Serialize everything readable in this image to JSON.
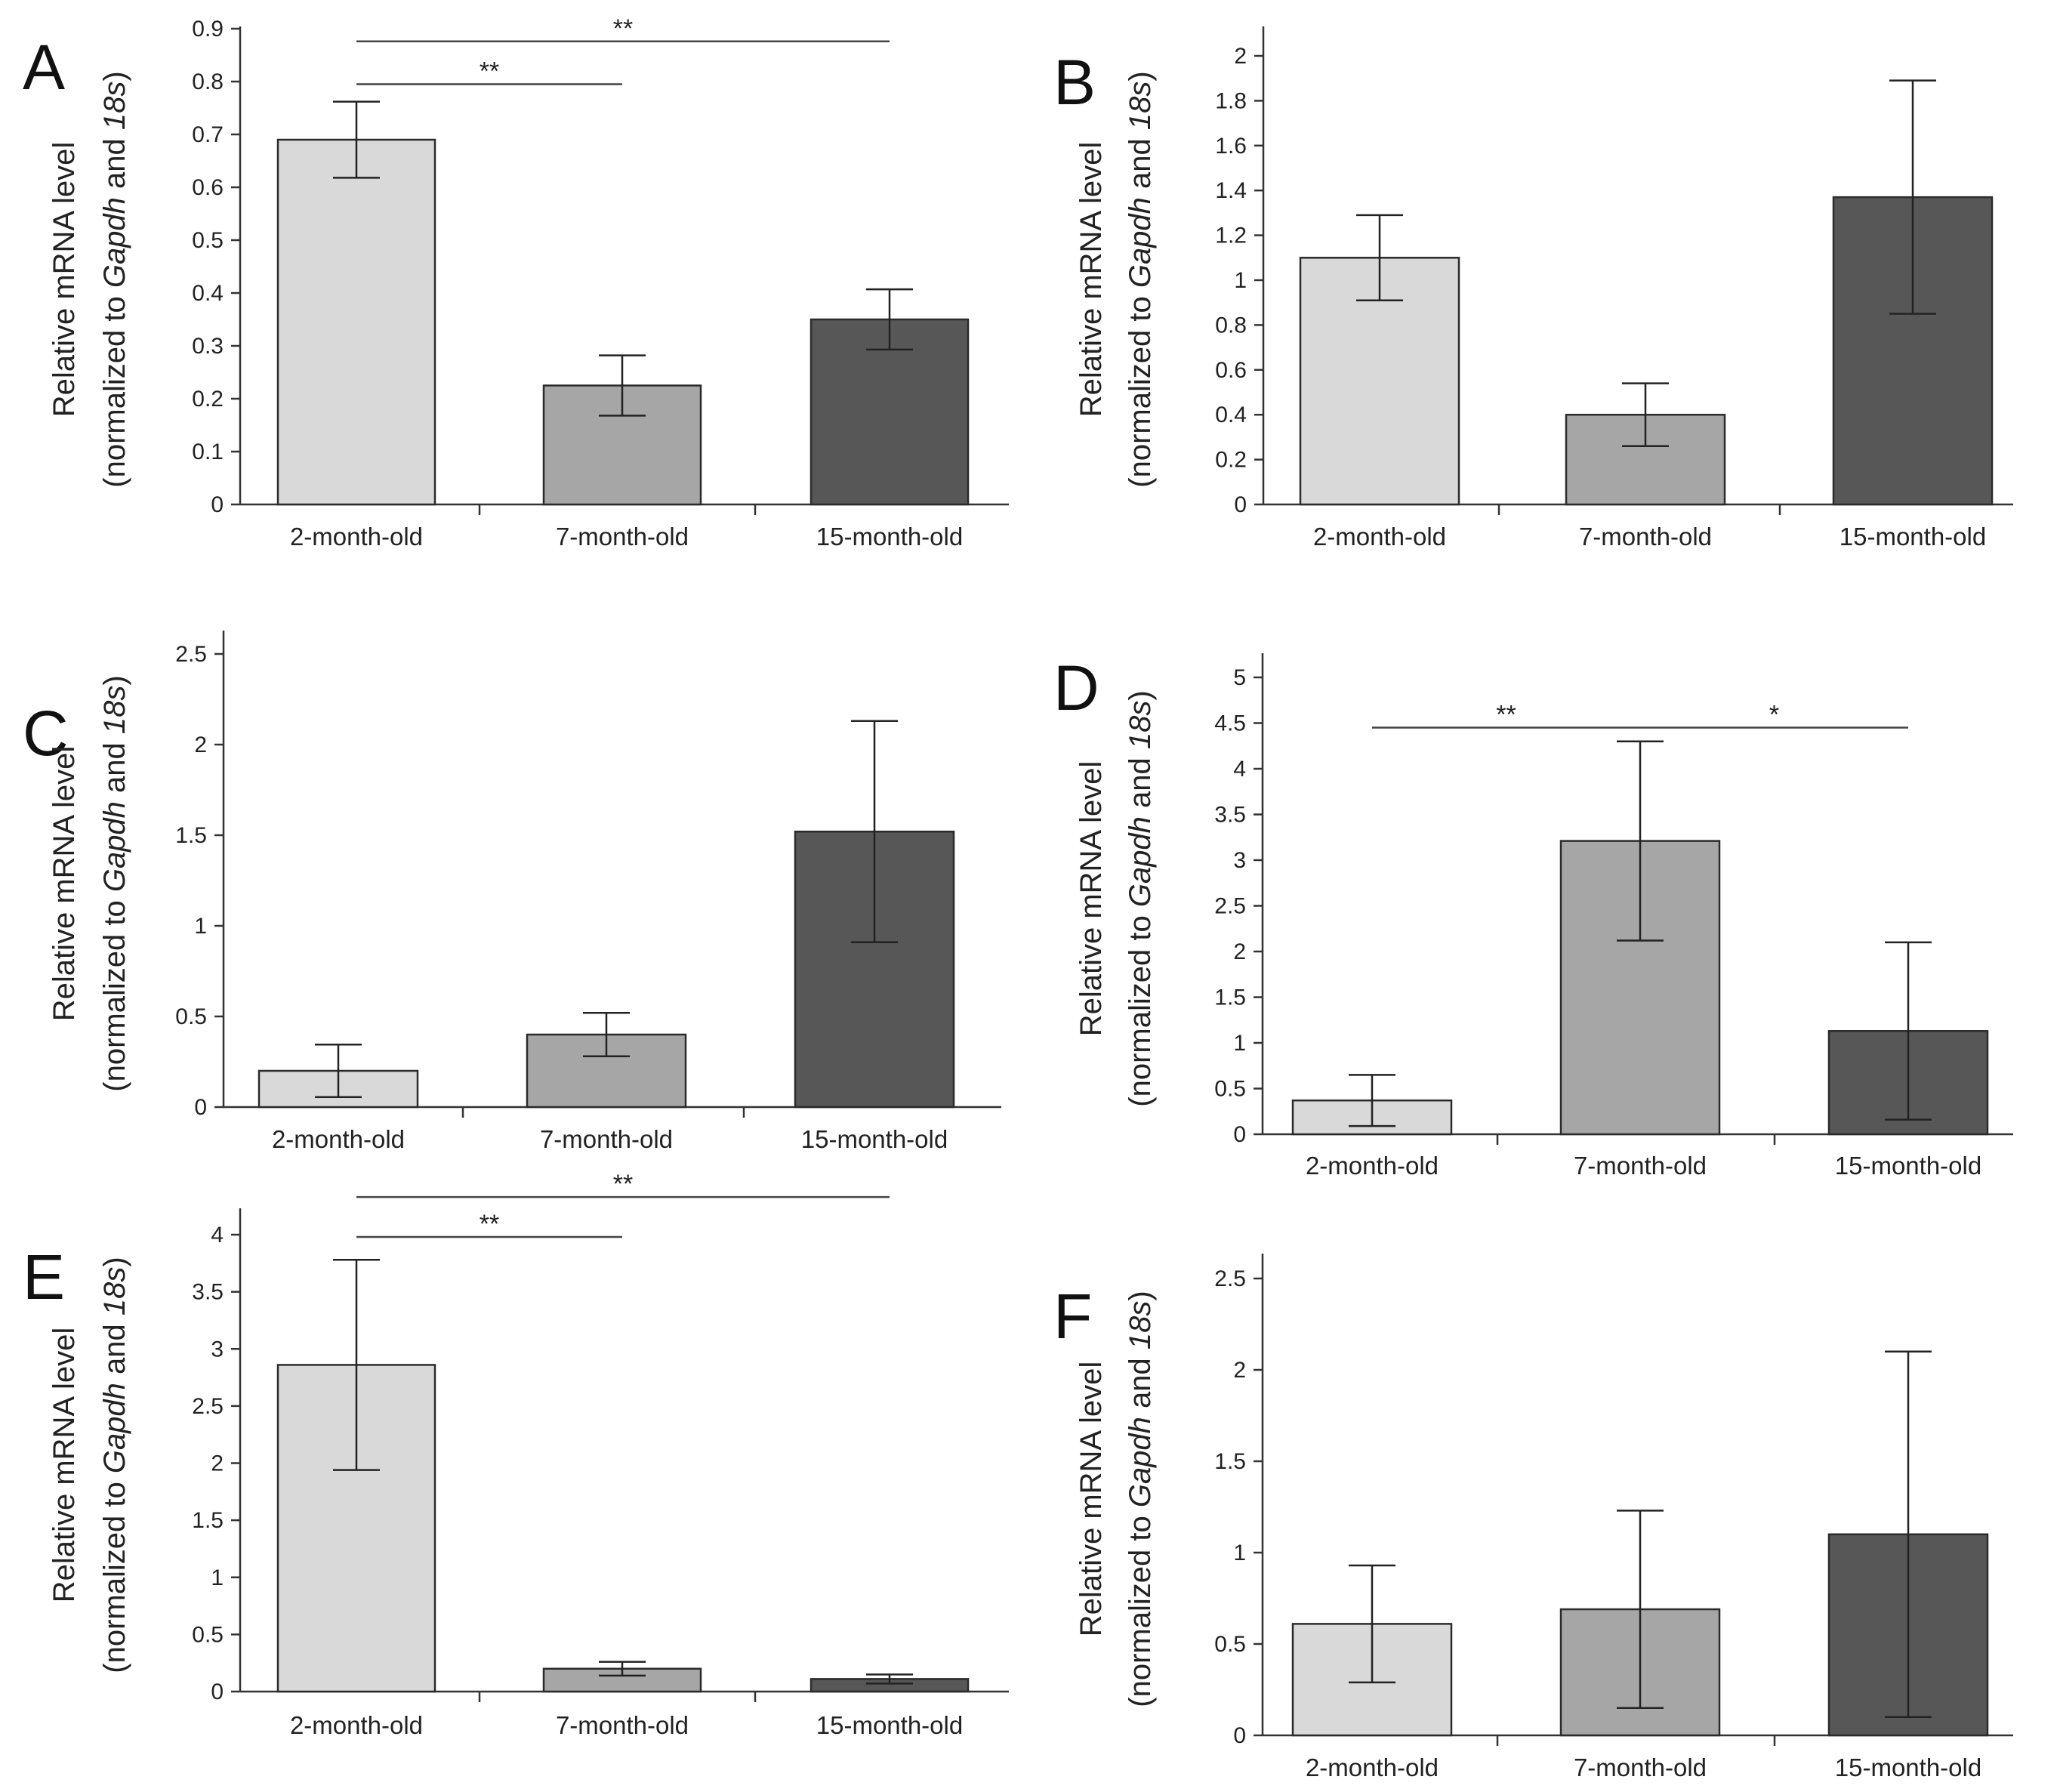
{
  "figure": {
    "colors": {
      "bar_2_month": "#d9d9d9",
      "bar_7_month": "#a6a6a6",
      "bar_15_month": "#575757",
      "axis": "#333333",
      "bar_outline": "#2b2b2b",
      "sig_line": "#444444"
    }
  },
  "chart_data": [
    {
      "panel": "A",
      "type": "bar",
      "categories": [
        "2-month-old",
        "7-month-old",
        "15-month-old"
      ],
      "values": [
        0.69,
        0.225,
        0.35
      ],
      "errors": [
        0.072,
        0.057,
        0.057
      ],
      "ylim": [
        0,
        0.95
      ],
      "yticks": [
        "0",
        "0.1",
        "0.2",
        "0.3",
        "0.4",
        "0.5",
        "0.6",
        "0.7",
        "0.8",
        "0.9"
      ],
      "ylabel_line1": "Relative mRNA level",
      "ylabel_line2": [
        "(normalized to ",
        "Gapdh",
        " and ",
        "18s",
        ")"
      ],
      "significance": [
        {
          "from": 0,
          "to": 1,
          "label": "**",
          "y": 0.795
        },
        {
          "from": 0,
          "to": 2,
          "label": "**",
          "y": 0.876
        }
      ]
    },
    {
      "panel": "B",
      "type": "bar",
      "categories": [
        "2-month-old",
        "7-month-old",
        "15-month-old"
      ],
      "values": [
        1.1,
        0.4,
        1.37
      ],
      "errors": [
        0.19,
        0.14,
        0.52
      ],
      "ylim": [
        0,
        2.1
      ],
      "yticks": [
        "0",
        "0.2",
        "0.4",
        "0.6",
        "0.8",
        "1",
        "1.2",
        "1.4",
        "1.6",
        "1.8",
        "2"
      ],
      "ylabel_line1": "Relative mRNA level",
      "ylabel_line2": [
        "(normalized to ",
        "Gapdh",
        " and ",
        "18s",
        ")"
      ],
      "significance": []
    },
    {
      "panel": "C",
      "type": "bar",
      "categories": [
        "2-month-old",
        "7-month-old",
        "15-month-old"
      ],
      "values": [
        0.2,
        0.4,
        1.52
      ],
      "errors": [
        0.145,
        0.12,
        0.61
      ],
      "ylim": [
        0,
        2.6
      ],
      "yticks": [
        "0",
        "0.5",
        "1",
        "1.5",
        "2",
        "2.5"
      ],
      "ylabel_line1": "Relative mRNA level",
      "ylabel_line2": [
        "(normalized to ",
        "Gapdh",
        " and ",
        "18s",
        ")"
      ],
      "significance": []
    },
    {
      "panel": "D",
      "type": "bar",
      "categories": [
        "2-month-old",
        "7-month-old",
        "15-month-old"
      ],
      "values": [
        0.37,
        3.21,
        1.13
      ],
      "errors": [
        0.28,
        1.09,
        0.97
      ],
      "ylim": [
        0,
        5.2
      ],
      "yticks": [
        "0",
        "0.5",
        "1",
        "1.5",
        "2",
        "2.5",
        "3",
        "3.5",
        "4",
        "4.5",
        "5"
      ],
      "ylabel_line1": "Relative mRNA level",
      "ylabel_line2": [
        "(normalized to ",
        "Gapdh",
        " and ",
        "18s",
        ")"
      ],
      "significance": [
        {
          "from": 0,
          "to": 1,
          "label": "**",
          "y": 4.45
        },
        {
          "from": 1,
          "to": 2,
          "label": "*",
          "y": 4.45
        }
      ]
    },
    {
      "panel": "E",
      "type": "bar",
      "categories": [
        "2-month-old",
        "7-month-old",
        "15-month-old"
      ],
      "values": [
        2.86,
        0.2,
        0.11
      ],
      "errors": [
        0.92,
        0.06,
        0.04
      ],
      "ylim": [
        0,
        4.15
      ],
      "yticks": [
        "0",
        "0.5",
        "1",
        "1.5",
        "2",
        "2.5",
        "3",
        "3.5",
        "4"
      ],
      "ylabel_line1": "Relative mRNA level",
      "ylabel_line2": [
        "(normalized to ",
        "Gapdh",
        " and ",
        "18s",
        ")"
      ],
      "significance": [
        {
          "from": 0,
          "to": 1,
          "label": "**",
          "y": 3.98
        },
        {
          "from": 0,
          "to": 2,
          "label": "**",
          "y": 4.33
        }
      ]
    },
    {
      "panel": "F",
      "type": "bar",
      "categories": [
        "2-month-old",
        "7-month-old",
        "15-month-old"
      ],
      "values": [
        0.61,
        0.69,
        1.1
      ],
      "errors": [
        0.32,
        0.54,
        1.0
      ],
      "ylim": [
        0,
        2.6
      ],
      "yticks": [
        "0",
        "0.5",
        "1",
        "1.5",
        "2",
        "2.5"
      ],
      "ylabel_line1": "Relative mRNA level",
      "ylabel_line2": [
        "(normalized to ",
        "Gapdh",
        " and ",
        "18s",
        ")"
      ],
      "significance": []
    }
  ]
}
